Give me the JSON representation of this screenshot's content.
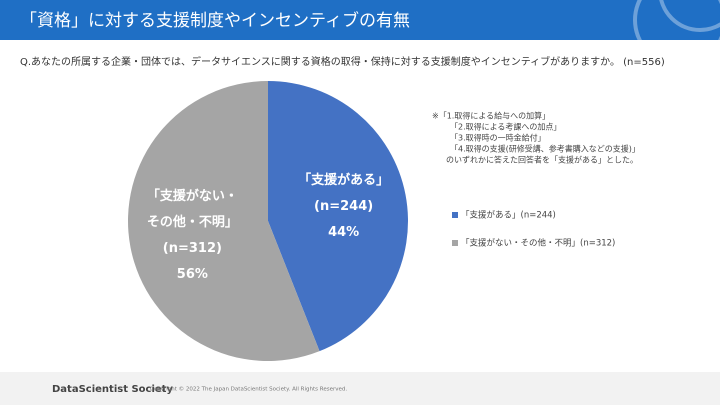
{
  "header": {
    "title": "「資格」に対する支援制度やインセンティブの有無"
  },
  "question": "Q.あなたの所属する企業・団体では、データサイエンスに関する資格の取得・保持に対する支援制度やインセンティブがありますか。 (n=556)",
  "chart_data": {
    "type": "pie",
    "categories": [
      "「支援がある」",
      "「支援がない・その他・不明」"
    ],
    "slice_labels": [
      [
        "「支援がある」"
      ],
      [
        "「支援がない・",
        "その他・不明」"
      ]
    ],
    "count_labels": [
      "(n=244)",
      "(n=312)"
    ],
    "values": [
      44,
      56
    ],
    "value_labels": [
      "44%",
      "56%"
    ],
    "colors": [
      "#4472c4",
      "#a5a5a5"
    ],
    "legend_labels": [
      "「支援がある」(n=244)",
      "「支援がない・その他・不明」(n=312)"
    ],
    "note": [
      "※「1.取得による給与への加算」",
      "「2.取得による考課への加点」",
      "「3.取得時の一時金給付」",
      "「4.取得の支援(研修受講、参考書購入などの支援)」",
      "のいずれかに答えた回答者を「支援がある」とした。"
    ]
  },
  "footer": {
    "brand": "DataScientist Society",
    "copyright": "Copyright © 2022 The Japan DataScientist Society. All Rights Reserved."
  }
}
